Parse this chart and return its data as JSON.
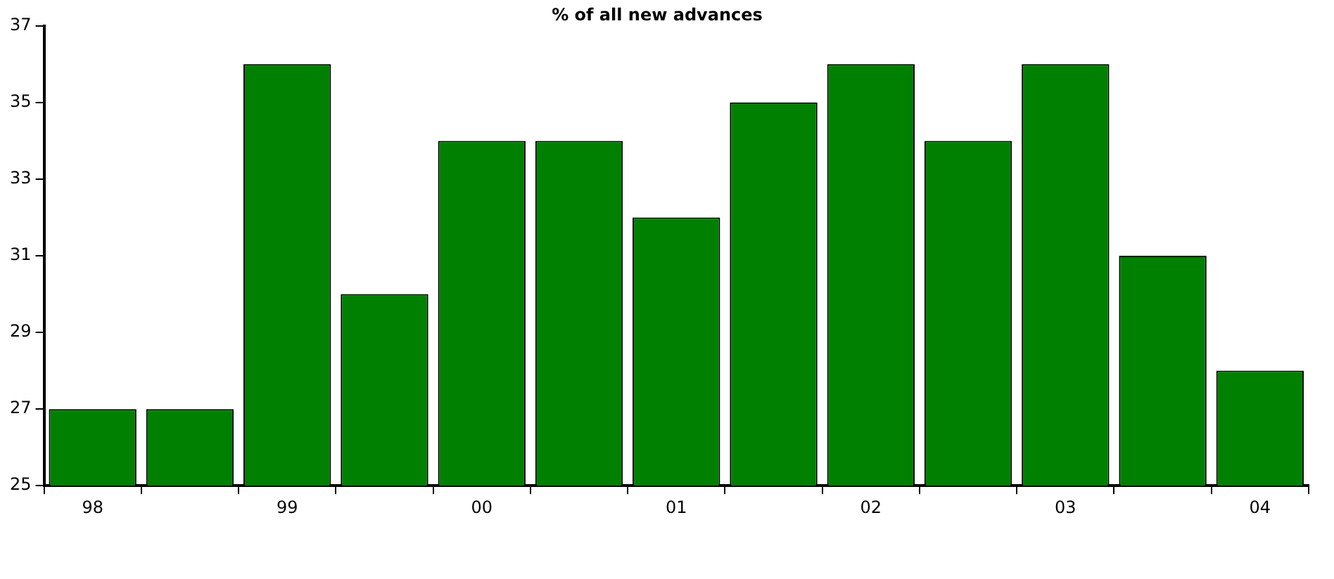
{
  "chart_data": {
    "type": "bar",
    "title": "% of all new advances",
    "categories": [
      "98",
      null,
      "99",
      null,
      "00",
      null,
      "01",
      null,
      "02",
      null,
      "03",
      null,
      "04"
    ],
    "values": [
      27,
      27,
      36,
      30,
      34,
      34,
      32,
      35,
      36,
      34,
      36,
      31,
      28
    ],
    "color": "#008000",
    "ylim": [
      25,
      37
    ],
    "yticks": [
      25,
      27,
      29,
      31,
      33,
      35,
      37
    ],
    "grid": false,
    "legend": false
  }
}
